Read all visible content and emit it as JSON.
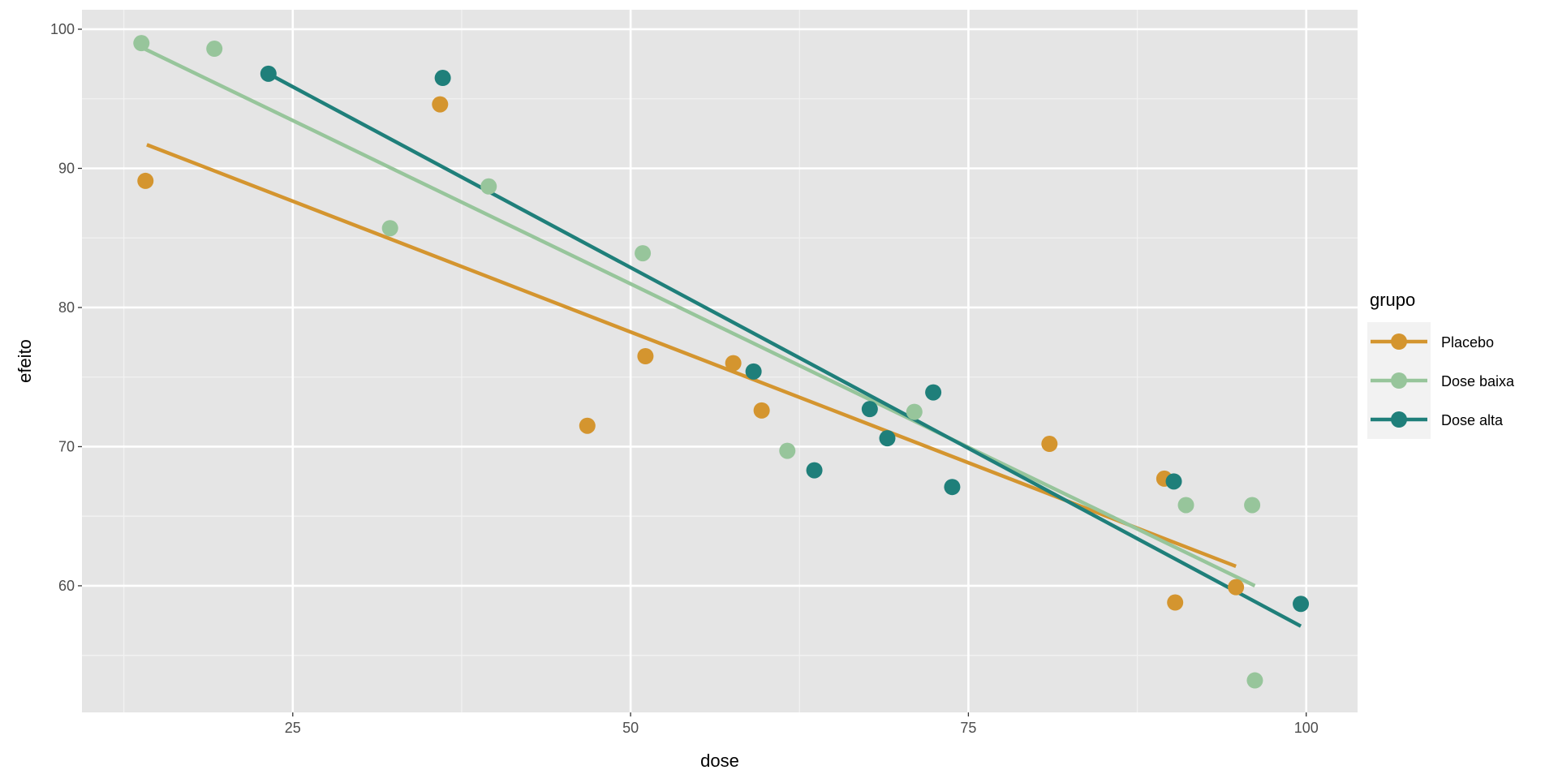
{
  "chart_data": {
    "type": "scatter",
    "title": "",
    "xlabel": "dose",
    "ylabel": "efeito",
    "xlim": [
      9.4,
      103.8
    ],
    "ylim": [
      50.9,
      101.4
    ],
    "xticks": [
      25,
      50,
      75,
      100
    ],
    "yticks": [
      60,
      70,
      80,
      90,
      100
    ],
    "grid": true,
    "legend": {
      "title": "grupo",
      "placement": "right"
    },
    "series": [
      {
        "name": "Placebo",
        "color": "#D4952F",
        "points": [
          [
            14.1,
            89.1
          ],
          [
            35.9,
            94.6
          ],
          [
            46.8,
            71.5
          ],
          [
            51.1,
            76.5
          ],
          [
            57.6,
            76.0
          ],
          [
            59.7,
            72.6
          ],
          [
            81.0,
            70.2
          ],
          [
            89.5,
            67.7
          ],
          [
            90.3,
            58.8
          ],
          [
            94.8,
            59.9
          ]
        ],
        "fit": [
          [
            14.2,
            91.7
          ],
          [
            94.8,
            61.4
          ]
        ]
      },
      {
        "name": "Dose baixa",
        "color": "#97C59B",
        "points": [
          [
            13.8,
            99.0
          ],
          [
            19.2,
            98.6
          ],
          [
            32.2,
            85.7
          ],
          [
            39.5,
            88.7
          ],
          [
            50.9,
            83.9
          ],
          [
            61.6,
            69.7
          ],
          [
            71.0,
            72.5
          ],
          [
            91.1,
            65.8
          ],
          [
            96.0,
            65.8
          ],
          [
            96.2,
            53.2
          ]
        ],
        "fit": [
          [
            13.8,
            98.7
          ],
          [
            96.2,
            60.0
          ]
        ]
      },
      {
        "name": "Dose alta",
        "color": "#1F7F7A",
        "points": [
          [
            23.2,
            96.8
          ],
          [
            36.1,
            96.5
          ],
          [
            59.1,
            75.4
          ],
          [
            63.6,
            68.3
          ],
          [
            67.7,
            72.7
          ],
          [
            69.0,
            70.6
          ],
          [
            72.4,
            73.9
          ],
          [
            73.8,
            67.1
          ],
          [
            90.2,
            67.5
          ],
          [
            99.6,
            58.7
          ]
        ],
        "fit": [
          [
            23.2,
            96.8
          ],
          [
            99.6,
            57.1
          ]
        ]
      }
    ]
  }
}
